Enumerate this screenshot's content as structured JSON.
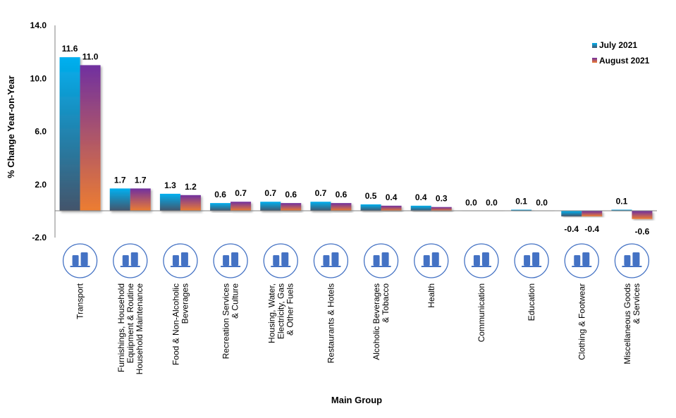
{
  "chart_data": {
    "type": "bar",
    "title": "",
    "xlabel": "Main Group",
    "ylabel": "% Change Year-on-Year",
    "ylim": [
      -2.0,
      14.0
    ],
    "yticks": [
      "14.0",
      "10.0",
      "6.0",
      "2.0",
      "-2.0"
    ],
    "ytick_values": [
      14,
      10,
      6,
      2,
      -2
    ],
    "grid": false,
    "legend_position": "top-right",
    "categories": [
      [
        "Transport"
      ],
      [
        "Furnishings, Household",
        "Equipment & Routine",
        "Household Maintenance"
      ],
      [
        "Food & Non-Alcoholic",
        "Beverages"
      ],
      [
        "Recreation Services",
        "& Culture"
      ],
      [
        "Housing, Water,",
        "Electricity, Gas",
        "& Other Fuels"
      ],
      [
        "Restaurants & Hotels"
      ],
      [
        "Alcoholic Beverages",
        "& Tobacco"
      ],
      [
        "Health"
      ],
      [
        "Communication"
      ],
      [
        "Education"
      ],
      [
        "Clothing & Footwear"
      ],
      [
        "Miscellaneous Goods",
        "& Services"
      ]
    ],
    "category_icons": [
      "transport-icon",
      "furnishings-icon",
      "food-beverage-icon",
      "theatre-masks-icon",
      "house-fire-icon",
      "restaurant-hotel-icon",
      "wine-bottle-icon",
      "stethoscope-heart-icon",
      "phone-mail-icon",
      "graduation-cap-icon",
      "clothing-shoes-icon",
      "toiletries-icon"
    ],
    "series": [
      {
        "name": "July 2021",
        "values": [
          11.6,
          1.7,
          1.3,
          0.6,
          0.7,
          0.7,
          0.5,
          0.4,
          0.0,
          0.1,
          -0.4,
          0.1
        ],
        "labels": [
          "11.6",
          "1.7",
          "1.3",
          "0.6",
          "0.7",
          "0.7",
          "0.5",
          "0.4",
          "0.0",
          "0.1",
          "-0.4",
          "0.1"
        ],
        "gradient": [
          "#00b0f0",
          "#44546a"
        ]
      },
      {
        "name": "August 2021",
        "values": [
          11.0,
          1.7,
          1.2,
          0.7,
          0.6,
          0.6,
          0.4,
          0.3,
          0.0,
          0.0,
          -0.4,
          -0.6
        ],
        "labels": [
          "11.0",
          "1.7",
          "1.2",
          "0.7",
          "0.6",
          "0.6",
          "0.4",
          "0.3",
          "0.0",
          "0.0",
          "-0.4",
          "-0.6"
        ],
        "gradient": [
          "#7030a0",
          "#ed7d31"
        ]
      }
    ]
  },
  "colors": {
    "icon": "#4472c4",
    "axis": "#808080"
  }
}
